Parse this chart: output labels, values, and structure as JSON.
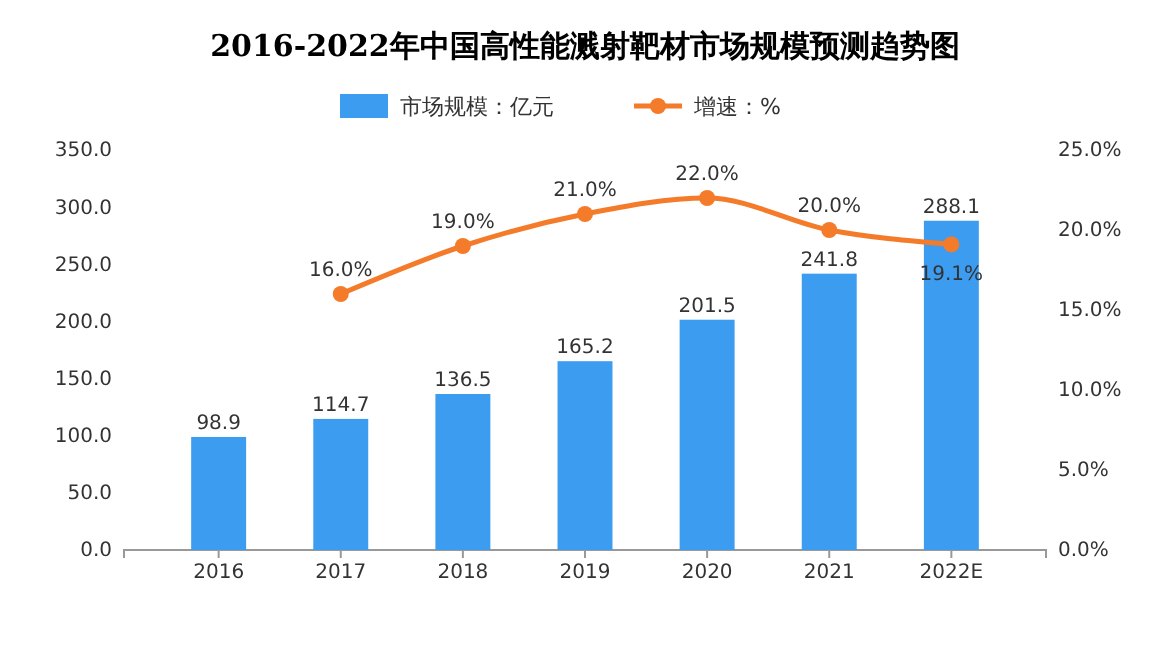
{
  "chart_data": {
    "type": "bar",
    "title": "2016-2022年中国高性能溅射靶材市场规模预测趋势图",
    "categories": [
      "2016",
      "2017",
      "2018",
      "2019",
      "2020",
      "2021",
      "2022E"
    ],
    "series": [
      {
        "name": "市场规模：亿元",
        "color": "#3c9cf0",
        "values": [
          98.9,
          114.7,
          136.5,
          165.2,
          201.5,
          241.8,
          288.1
        ],
        "value_labels": [
          "98.9",
          "114.7",
          "136.5",
          "165.2",
          "201.5",
          "241.8",
          "288.1"
        ]
      },
      {
        "name": "增速：%",
        "type": "line",
        "axis": "y2",
        "color": "#f47b2a",
        "marker": "circle",
        "values": [
          null,
          16.0,
          19.0,
          21.0,
          22.0,
          20.0,
          19.1
        ],
        "value_labels": [
          null,
          "16.0%",
          "19.0%",
          "21.0%",
          "22.0%",
          "20.0%",
          "19.1%"
        ]
      }
    ],
    "ylim": [
      0,
      350
    ],
    "yticks": [
      {
        "value": 0,
        "label": "0.0"
      },
      {
        "value": 50,
        "label": "50.0"
      },
      {
        "value": 100,
        "label": "100.0"
      },
      {
        "value": 150,
        "label": "150.0"
      },
      {
        "value": 200,
        "label": "200.0"
      },
      {
        "value": 250,
        "label": "250.0"
      },
      {
        "value": 300,
        "label": "300.0"
      },
      {
        "value": 350,
        "label": "350.0"
      }
    ],
    "y2lim": [
      0,
      25
    ],
    "y2ticks": [
      {
        "value": 0,
        "label": "0.0%"
      },
      {
        "value": 5,
        "label": "5.0%"
      },
      {
        "value": 10,
        "label": "10.0%"
      },
      {
        "value": 15,
        "label": "15.0%"
      },
      {
        "value": 20,
        "label": "20.0%"
      },
      {
        "value": 25,
        "label": "25.0%"
      }
    ],
    "legend": "top",
    "grid": false
  }
}
